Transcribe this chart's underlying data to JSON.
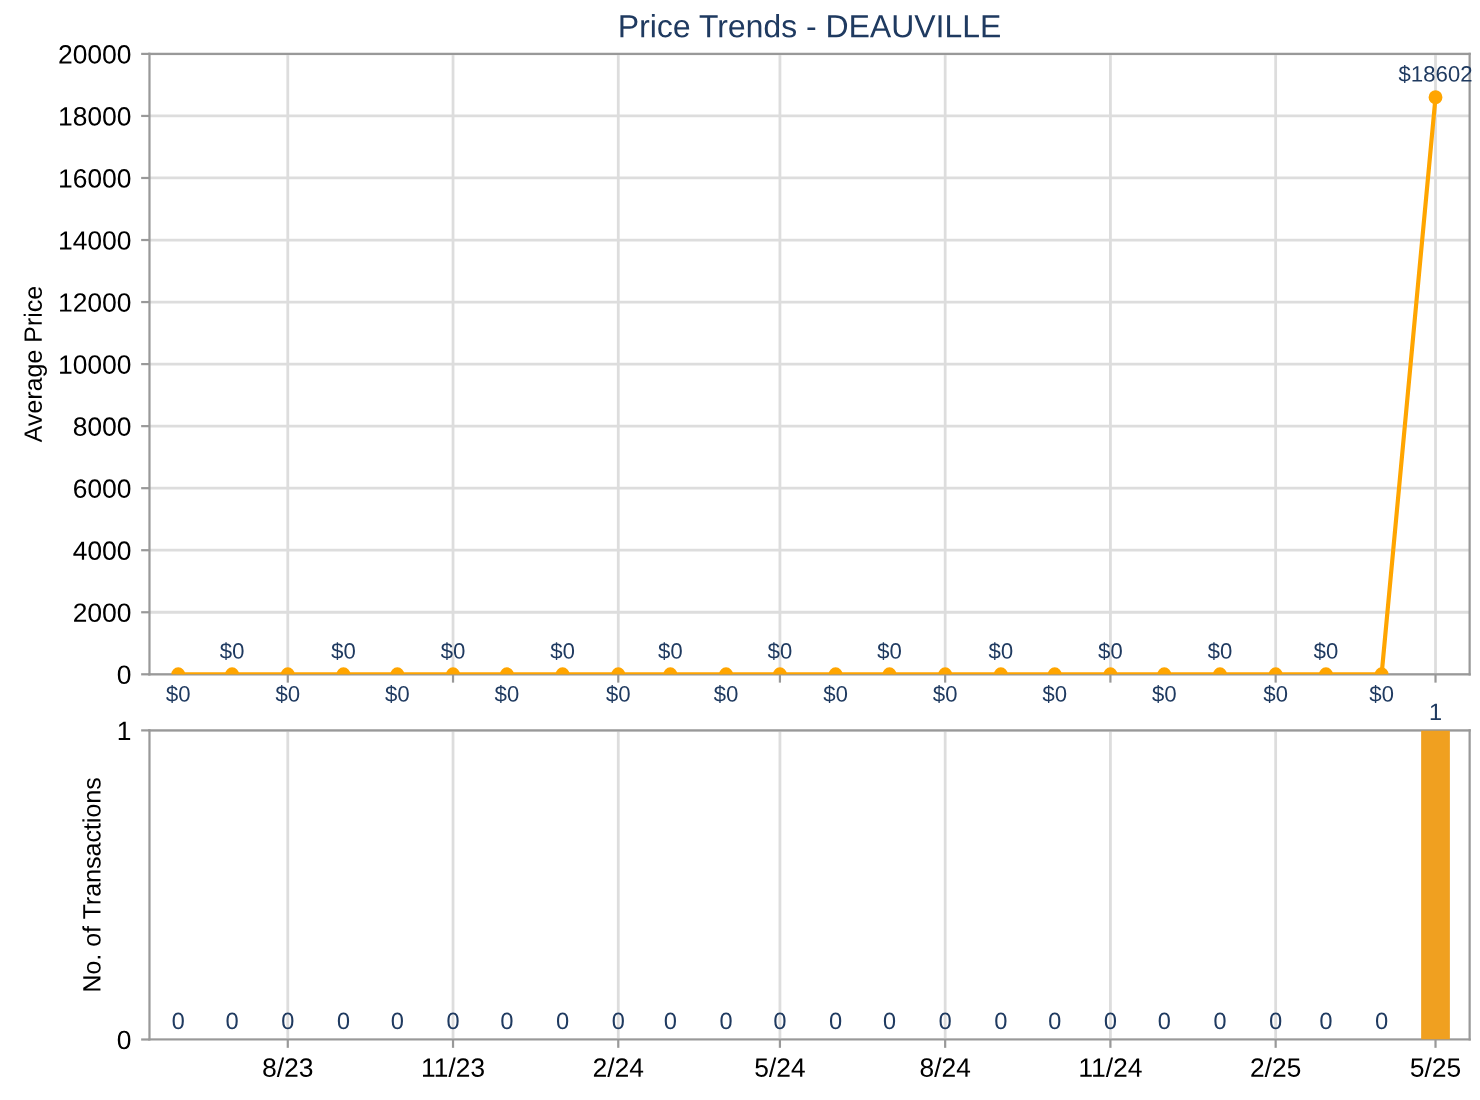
{
  "chart_data": [
    {
      "type": "line",
      "title": "Price Trends - DEAUVILLE",
      "ylabel": "Average Price",
      "x": [
        "2023-06",
        "2023-07",
        "2023-08",
        "2023-09",
        "2023-10",
        "2023-11",
        "2023-12",
        "2024-01",
        "2024-02",
        "2024-03",
        "2024-04",
        "2024-05",
        "2024-06",
        "2024-07",
        "2024-08",
        "2024-09",
        "2024-10",
        "2024-11",
        "2024-12",
        "2025-01",
        "2025-02",
        "2025-03",
        "2025-04",
        "2025-05"
      ],
      "series": [
        {
          "color": "#ffa500",
          "values": [
            0,
            0,
            0,
            0,
            0,
            0,
            0,
            0,
            0,
            0,
            0,
            0,
            0,
            0,
            0,
            0,
            0,
            0,
            0,
            0,
            0,
            0,
            0,
            18602
          ],
          "value_labels": [
            "$0",
            "$0",
            "$0",
            "$0",
            "$0",
            "$0",
            "$0",
            "$0",
            "$0",
            "$0",
            "$0",
            "$0",
            "$0",
            "$0",
            "$0",
            "$0",
            "$0",
            "$0",
            "$0",
            "$0",
            "$0",
            "$0",
            "$0",
            "$18602"
          ]
        }
      ],
      "xlim": [
        "2023-05-16",
        "2025-05-20"
      ],
      "ylim": [
        0,
        20000
      ],
      "yticks": [
        0,
        2000,
        4000,
        6000,
        8000,
        10000,
        12000,
        14000,
        16000,
        18000,
        20000
      ],
      "xticks": [
        {
          "value": "2023-08",
          "label": null
        },
        {
          "value": "2023-11",
          "label": null
        },
        {
          "value": "2024-02",
          "label": null
        },
        {
          "value": "2024-05",
          "label": null
        },
        {
          "value": "2024-08",
          "label": null
        },
        {
          "value": "2024-11",
          "label": null
        },
        {
          "value": "2025-02",
          "label": null
        },
        {
          "value": "2025-05",
          "label": null
        }
      ],
      "tick_labels": "y",
      "grid": true,
      "marker": "circle",
      "line_style": "solid"
    },
    {
      "type": "bar",
      "ylabel": "No. of Transactions",
      "x": [
        "2023-06",
        "2023-07",
        "2023-08",
        "2023-09",
        "2023-10",
        "2023-11",
        "2023-12",
        "2024-01",
        "2024-02",
        "2024-03",
        "2024-04",
        "2024-05",
        "2024-06",
        "2024-07",
        "2024-08",
        "2024-09",
        "2024-10",
        "2024-11",
        "2024-12",
        "2025-01",
        "2025-02",
        "2025-03",
        "2025-04",
        "2025-05"
      ],
      "series": [
        {
          "color": "#f0a020",
          "values": [
            0,
            0,
            0,
            0,
            0,
            0,
            0,
            0,
            0,
            0,
            0,
            0,
            0,
            0,
            0,
            0,
            0,
            0,
            0,
            0,
            0,
            0,
            0,
            1
          ]
        }
      ],
      "xlim": [
        "2023-05-16",
        "2025-05-20"
      ],
      "ylim": [
        0,
        1
      ],
      "yticks": [
        0,
        1
      ],
      "xticks": [
        {
          "value": "2023-08",
          "label": "8/23"
        },
        {
          "value": "2023-11",
          "label": "11/23"
        },
        {
          "value": "2024-02",
          "label": "2/24"
        },
        {
          "value": "2024-05",
          "label": "5/24"
        },
        {
          "value": "2024-08",
          "label": "8/24"
        },
        {
          "value": "2024-11",
          "label": "11/24"
        },
        {
          "value": "2025-02",
          "label": "2/25"
        },
        {
          "value": "2025-05",
          "label": "5/25"
        }
      ],
      "grid": true,
      "data_labels": true
    }
  ]
}
